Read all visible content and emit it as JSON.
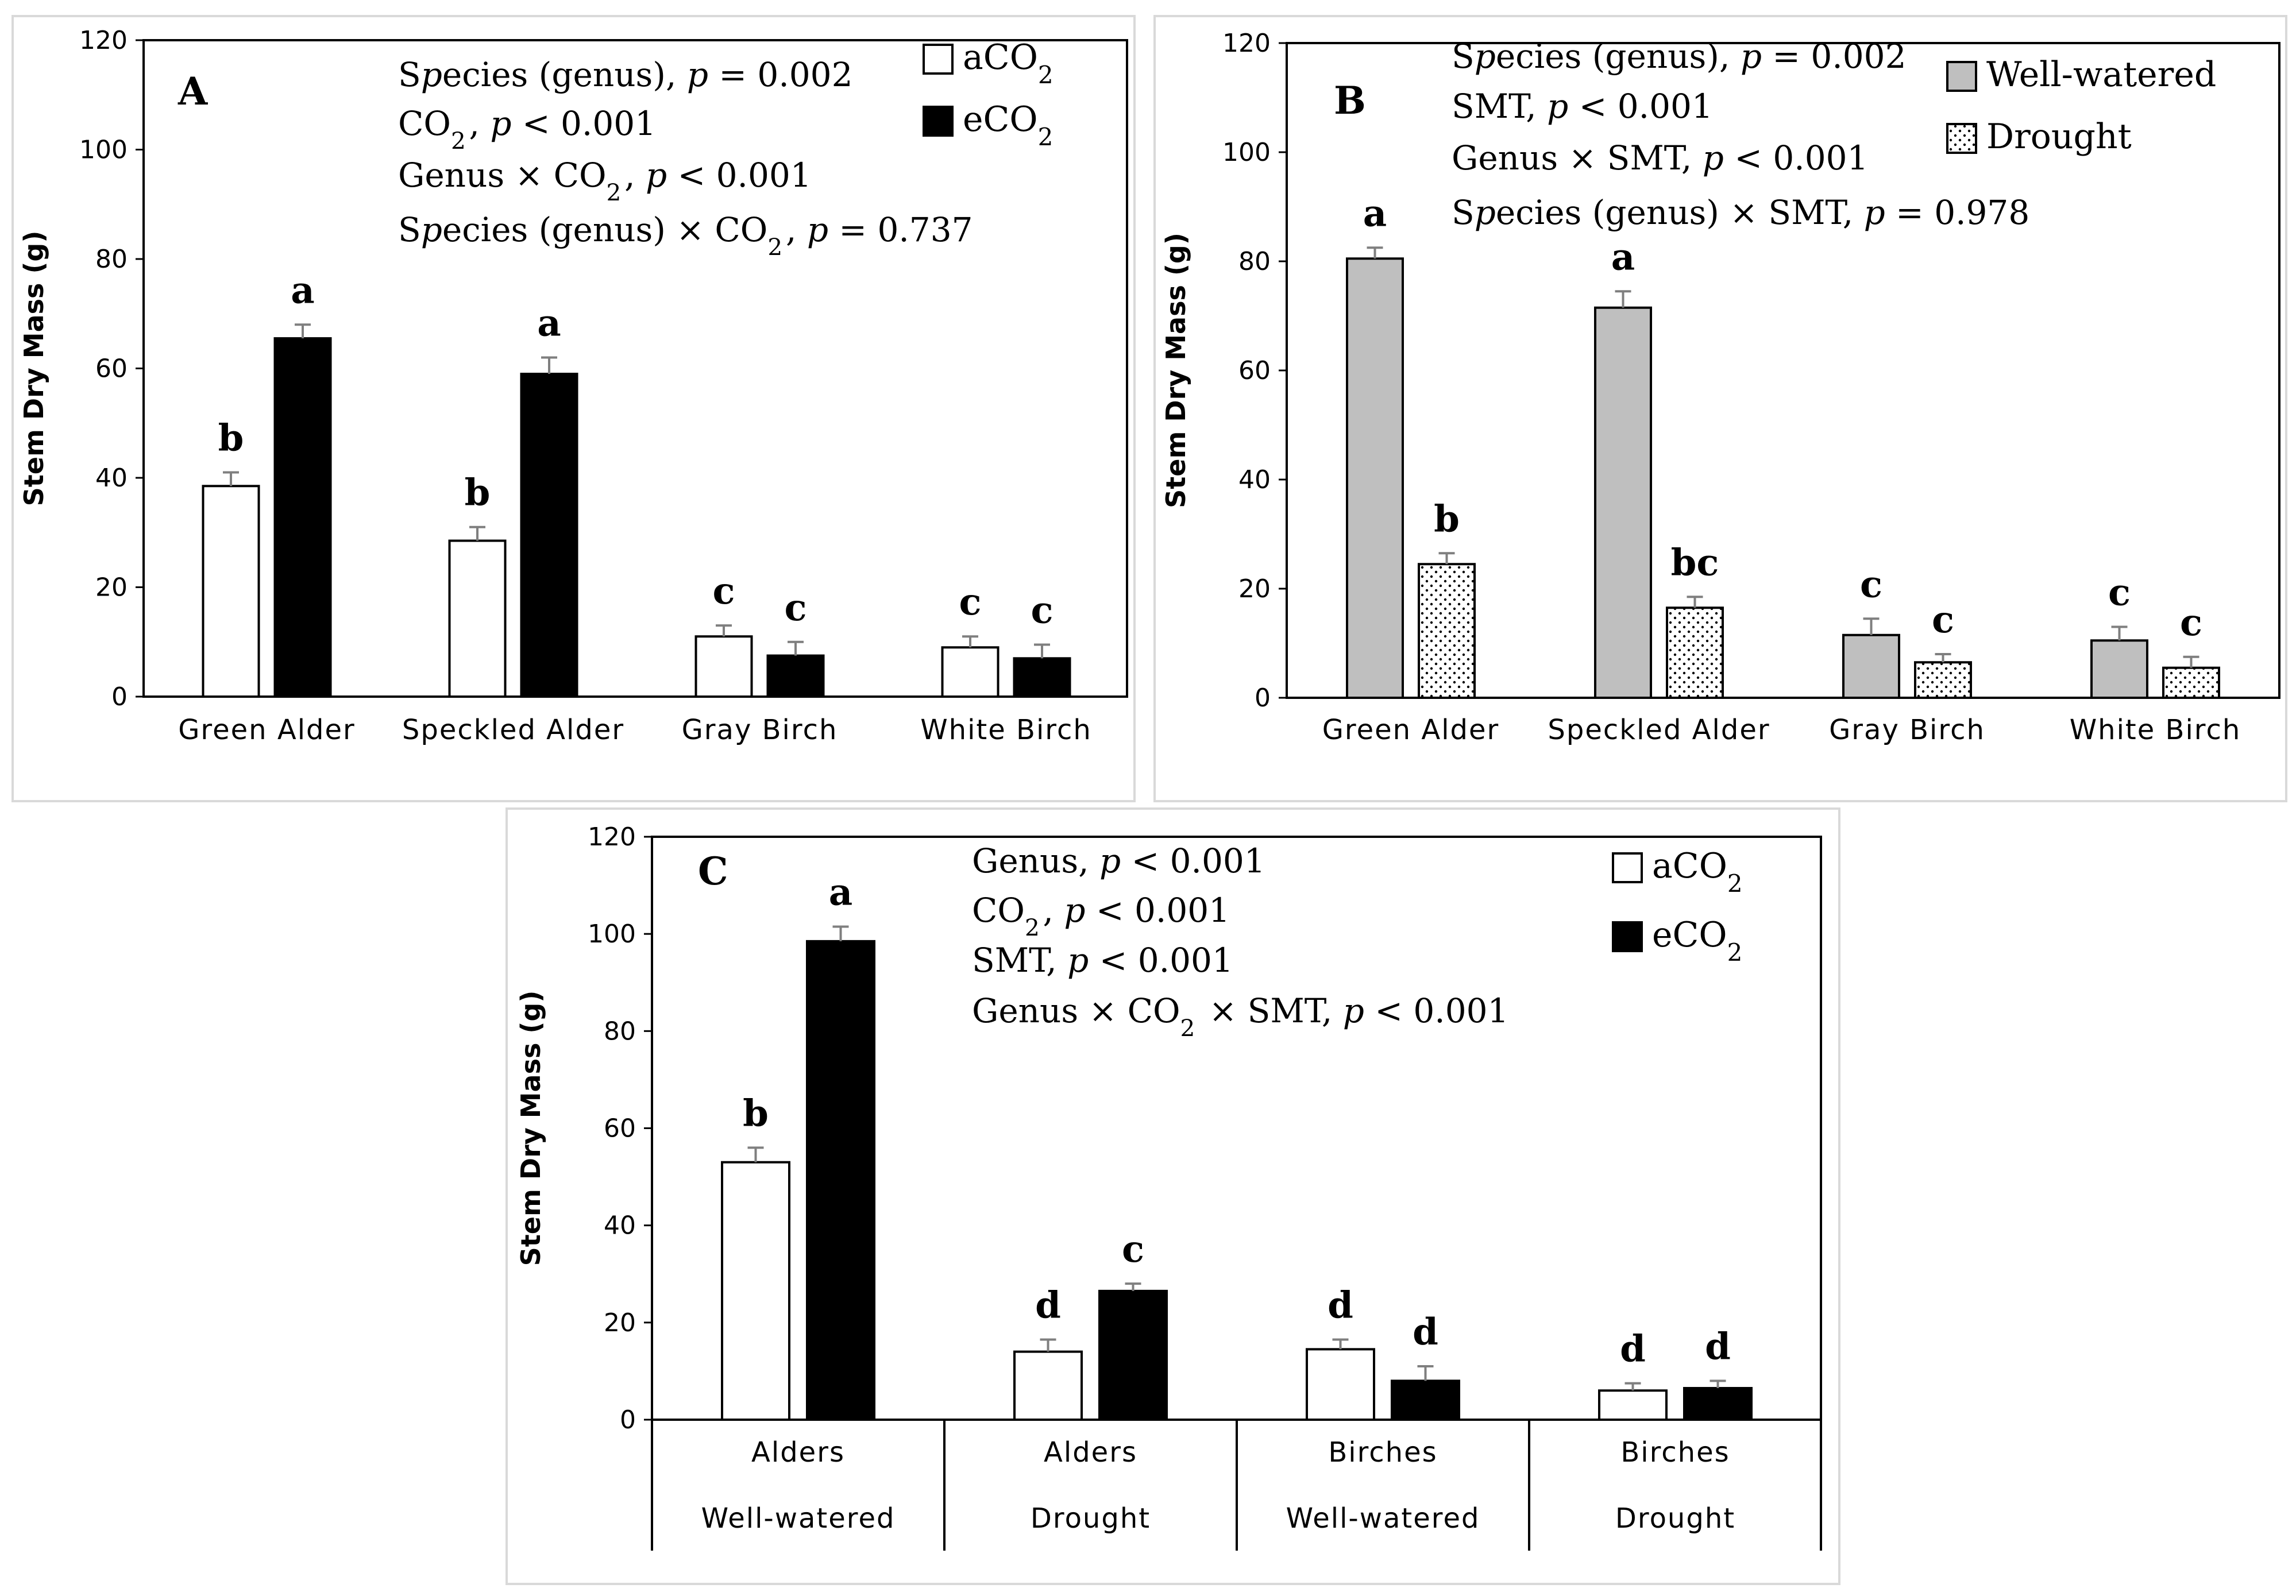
{
  "chart_data": [
    {
      "panel": "A",
      "type": "bar",
      "ylabel": "Stem Dry Mass (g)",
      "ylim": [
        0,
        120
      ],
      "yticks": [
        0,
        20,
        40,
        60,
        80,
        100,
        120
      ],
      "categories": [
        "Green Alder",
        "Speckled Alder",
        "Gray Birch",
        "White Birch"
      ],
      "series": [
        {
          "name": "aCO2",
          "fill": "#ffffff",
          "values": [
            38.5,
            28.5,
            11,
            9
          ],
          "errors": [
            2.5,
            2.5,
            2.0,
            2.0
          ],
          "letters": [
            "b",
            "b",
            "c",
            "c"
          ]
        },
        {
          "name": "eCO2",
          "fill": "#000000",
          "values": [
            65.5,
            59,
            7.5,
            7
          ],
          "errors": [
            2.5,
            3.0,
            2.5,
            2.5
          ],
          "letters": [
            "a",
            "a",
            "c",
            "c"
          ]
        }
      ],
      "stats": [
        "Species (genus),  p = 0.002",
        "CO2,  p < 0.001",
        "Genus × CO2,  p < 0.001",
        "Species (genus) × CO2,  p = 0.737"
      ]
    },
    {
      "panel": "B",
      "type": "bar",
      "ylabel": "Stem Dry Mass (g)",
      "ylim": [
        0,
        120
      ],
      "yticks": [
        0,
        20,
        40,
        60,
        80,
        100,
        120
      ],
      "categories": [
        "Green Alder",
        "Speckled Alder",
        "Gray Birch",
        "White Birch"
      ],
      "series": [
        {
          "name": "Well-watered",
          "fill": "#bfbfbf",
          "values": [
            80.5,
            71.5,
            11.5,
            10.5
          ],
          "errors": [
            2.0,
            3.0,
            3.0,
            2.5
          ],
          "letters": [
            "a",
            "a",
            "c",
            "c"
          ]
        },
        {
          "name": "Drought",
          "fill": "dots",
          "values": [
            24.5,
            16.5,
            6.5,
            5.5
          ],
          "errors": [
            2.0,
            2.0,
            1.5,
            2.0
          ],
          "letters": [
            "b",
            "bc",
            "c",
            "c"
          ]
        }
      ],
      "stats": [
        "Species (genus),  p = 0.002",
        "SMT,  p < 0.001",
        "Genus × SMT,  p < 0.001",
        "Species (genus) × SMT,  p = 0.978"
      ]
    },
    {
      "panel": "C",
      "type": "bar",
      "ylabel": "Stem Dry Mass (g)",
      "ylim": [
        0,
        120
      ],
      "yticks": [
        0,
        20,
        40,
        60,
        80,
        100,
        120
      ],
      "categories": [
        [
          "Alders",
          "Well-watered"
        ],
        [
          "Alders",
          "Drought"
        ],
        [
          "Birches",
          "Well-watered"
        ],
        [
          "Birches",
          "Drought"
        ]
      ],
      "series": [
        {
          "name": "aCO2",
          "fill": "#ffffff",
          "values": [
            53,
            14,
            14.5,
            6
          ],
          "errors": [
            3.0,
            2.5,
            2.0,
            1.5
          ],
          "letters": [
            "b",
            "d",
            "d",
            "d"
          ]
        },
        {
          "name": "eCO2",
          "fill": "#000000",
          "values": [
            98.5,
            26.5,
            8,
            6.5
          ],
          "errors": [
            3.0,
            1.5,
            3.0,
            1.5
          ],
          "letters": [
            "a",
            "c",
            "d",
            "d"
          ]
        }
      ],
      "stats": [
        "Genus,  p < 0.001",
        "CO2,  p < 0.001",
        "SMT,  p < 0.001",
        "Genus × CO2 × SMT,  p < 0.001"
      ]
    }
  ]
}
